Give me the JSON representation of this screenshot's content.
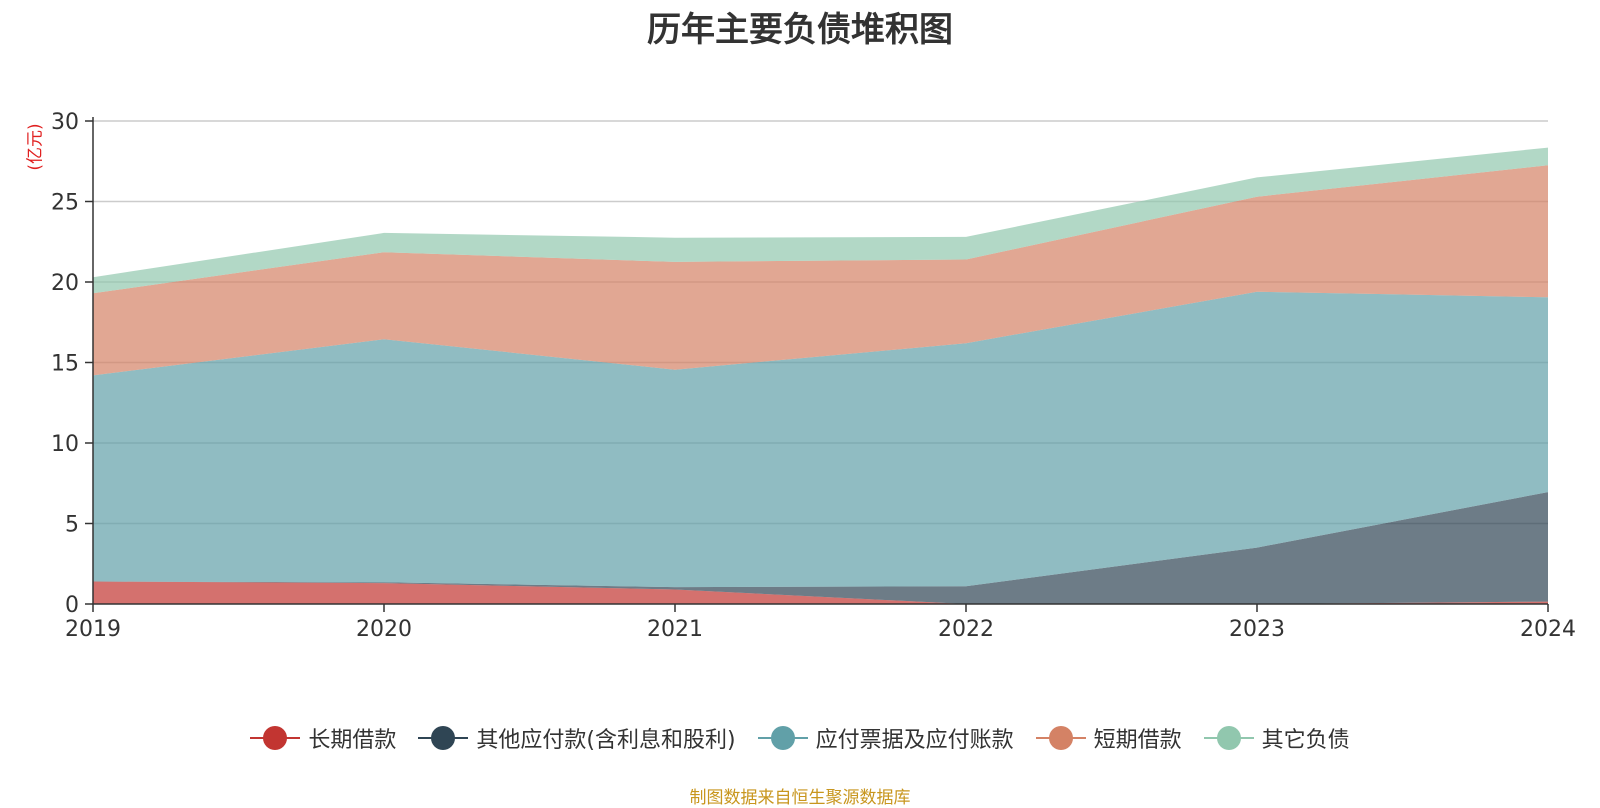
{
  "chart_data": {
    "type": "area",
    "stacked": true,
    "title": "历年主要负债堆积图",
    "ylabel": "(亿元)",
    "x": [
      "2019",
      "2020",
      "2021",
      "2022",
      "2023",
      "2024"
    ],
    "ylim": [
      0,
      30
    ],
    "yticks": [
      "0",
      "5",
      "10",
      "15",
      "20",
      "25",
      "30"
    ],
    "grid": true,
    "legend_position": "bottom",
    "series": [
      {
        "name": "长期借款",
        "color": "#c23531",
        "values": [
          1.4,
          1.3,
          0.9,
          0,
          0,
          0.15
        ]
      },
      {
        "name": "其他应付款(含利息和股利)",
        "color": "#2f4554",
        "values": [
          0,
          0.05,
          0.15,
          1.1,
          3.5,
          6.8
        ]
      },
      {
        "name": "应付票据及应付账款",
        "color": "#61a0a8",
        "values": [
          12.8,
          15.1,
          13.5,
          15.1,
          15.9,
          12.1
        ]
      },
      {
        "name": "短期借款",
        "color": "#d48265",
        "values": [
          5.1,
          5.4,
          6.7,
          5.2,
          5.9,
          8.2
        ]
      },
      {
        "name": "其它负债",
        "color": "#91c7ae",
        "values": [
          1.0,
          1.2,
          1.5,
          1.4,
          1.2,
          1.1
        ]
      }
    ]
  },
  "source_note": "制图数据来自恒生聚源数据库"
}
